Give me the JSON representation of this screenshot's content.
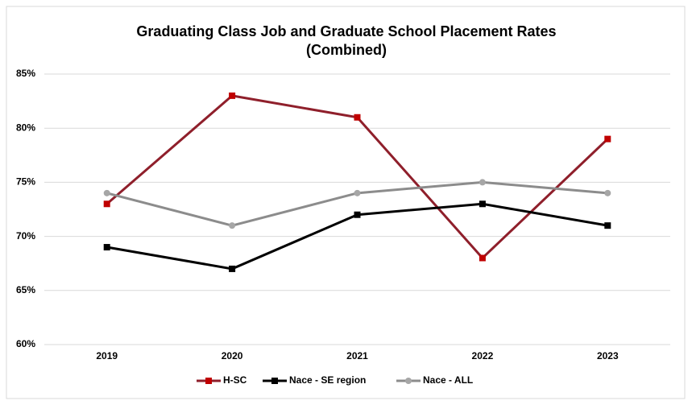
{
  "chart_data": {
    "type": "line",
    "title": [
      "Graduating Class Job and Graduate School Placement Rates",
      "(Combined)"
    ],
    "categories": [
      "2019",
      "2020",
      "2021",
      "2022",
      "2023"
    ],
    "series": [
      {
        "name": "H-SC",
        "color": "#8f1f2b",
        "marker_color": "#c00000",
        "marker": "square",
        "values": [
          73,
          83,
          81,
          68,
          79
        ]
      },
      {
        "name": "Nace - SE region",
        "color": "#000000",
        "marker_color": "#000000",
        "marker": "square",
        "values": [
          69,
          67,
          72,
          73,
          71
        ]
      },
      {
        "name": "Nace - ALL",
        "color": "#8c8c8c",
        "marker_color": "#a6a6a6",
        "marker": "circle",
        "values": [
          74,
          71,
          74,
          75,
          74
        ]
      }
    ],
    "ylim": [
      60,
      85
    ],
    "yticks": [
      {
        "value": 60,
        "label": "60%"
      },
      {
        "value": 65,
        "label": "65%"
      },
      {
        "value": 70,
        "label": "70%"
      },
      {
        "value": 75,
        "label": "75%"
      },
      {
        "value": 80,
        "label": "80%"
      },
      {
        "value": 85,
        "label": "85%"
      }
    ],
    "grid": true,
    "legend": "bottom"
  }
}
